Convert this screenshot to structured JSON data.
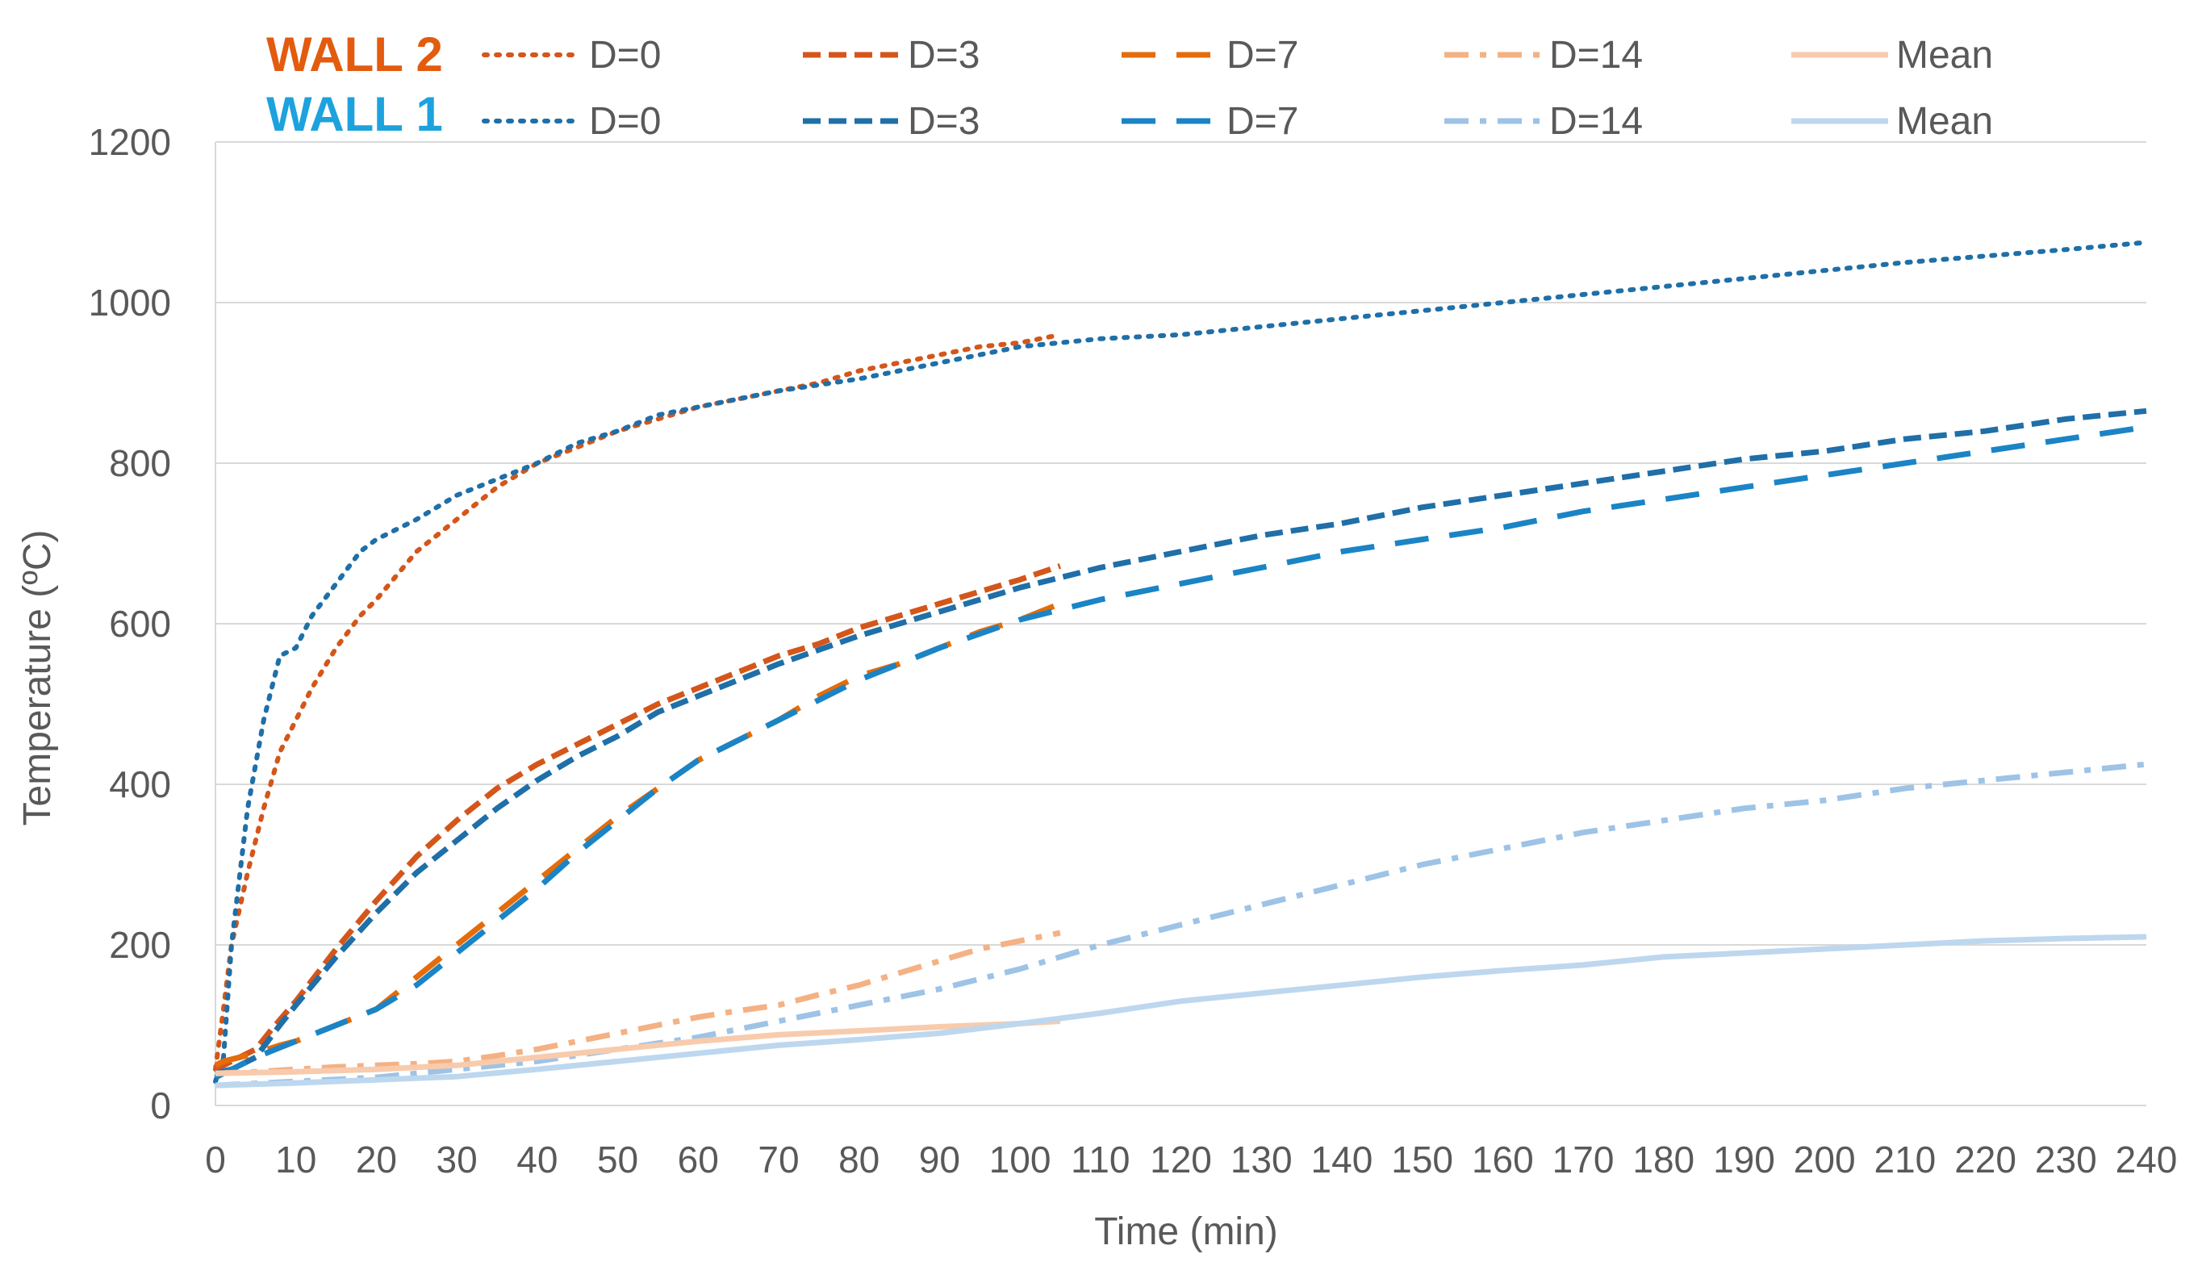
{
  "chart_data": {
    "type": "line",
    "title": "",
    "xlabel": "Time (min)",
    "ylabel": "Temperature (ºC)",
    "xlim": [
      0,
      240
    ],
    "ylim": [
      0,
      1200
    ],
    "xticks": [
      0,
      10,
      20,
      30,
      40,
      50,
      60,
      70,
      80,
      90,
      100,
      110,
      120,
      130,
      140,
      150,
      160,
      170,
      180,
      190,
      200,
      210,
      220,
      230,
      240
    ],
    "yticks": [
      0,
      200,
      400,
      600,
      800,
      1000,
      1200
    ],
    "grid": "horizontal",
    "legend_position": "top",
    "legend_groups": [
      {
        "label": "WALL 2",
        "color": "#e35b0e"
      },
      {
        "label": "WALL 1",
        "color": "#1da2de"
      }
    ],
    "series": [
      {
        "name": "D=0",
        "group": "WALL 2",
        "color": "#d4561a",
        "style": "dotted",
        "x": [
          0,
          1,
          2,
          4,
          6,
          8,
          10,
          12,
          15,
          18,
          20,
          25,
          30,
          35,
          40,
          45,
          50,
          55,
          60,
          65,
          70,
          75,
          80,
          85,
          90,
          95,
          100,
          104
        ],
        "y": [
          45,
          120,
          200,
          290,
          370,
          440,
          480,
          520,
          570,
          610,
          630,
          690,
          730,
          770,
          800,
          820,
          840,
          855,
          870,
          880,
          890,
          900,
          915,
          925,
          935,
          945,
          950,
          958
        ]
      },
      {
        "name": "D=0",
        "group": "WALL 1",
        "color": "#1f6fa8",
        "style": "dotted",
        "x": [
          0,
          1,
          2,
          4,
          6,
          8,
          10,
          12,
          15,
          18,
          20,
          25,
          30,
          35,
          40,
          45,
          50,
          55,
          60,
          70,
          80,
          90,
          100,
          110,
          120,
          130,
          140,
          150,
          160,
          170,
          180,
          190,
          200,
          210,
          220,
          230,
          240
        ],
        "y": [
          30,
          60,
          200,
          370,
          480,
          560,
          570,
          610,
          650,
          690,
          705,
          730,
          760,
          780,
          800,
          825,
          840,
          860,
          870,
          890,
          905,
          925,
          945,
          955,
          960,
          970,
          980,
          990,
          1000,
          1010,
          1020,
          1030,
          1040,
          1050,
          1058,
          1066,
          1075
        ]
      },
      {
        "name": "D=3",
        "group": "WALL 2",
        "color": "#d4561a",
        "style": "dashed-short",
        "x": [
          0,
          1,
          3,
          5,
          7,
          10,
          15,
          20,
          25,
          30,
          35,
          40,
          45,
          50,
          55,
          60,
          65,
          70,
          75,
          80,
          85,
          90,
          95,
          100,
          105
        ],
        "y": [
          45,
          50,
          60,
          70,
          95,
          130,
          195,
          255,
          310,
          355,
          395,
          425,
          450,
          475,
          500,
          520,
          540,
          560,
          575,
          595,
          610,
          625,
          640,
          655,
          672
        ]
      },
      {
        "name": "D=3",
        "group": "WALL 1",
        "color": "#1f6fa8",
        "style": "dashed-short",
        "x": [
          0,
          2,
          5,
          8,
          10,
          15,
          20,
          25,
          30,
          35,
          40,
          45,
          50,
          55,
          60,
          70,
          80,
          90,
          100,
          110,
          120,
          130,
          140,
          150,
          160,
          170,
          180,
          190,
          200,
          210,
          220,
          230,
          240
        ],
        "y": [
          40,
          45,
          60,
          100,
          125,
          185,
          240,
          290,
          330,
          370,
          405,
          435,
          460,
          490,
          510,
          550,
          585,
          615,
          645,
          670,
          690,
          710,
          725,
          745,
          760,
          775,
          790,
          805,
          815,
          830,
          840,
          855,
          865
        ]
      },
      {
        "name": "D=7",
        "group": "WALL 2",
        "color": "#e46c0a",
        "style": "dashed-long",
        "x": [
          0,
          1,
          3,
          5,
          8,
          10,
          15,
          20,
          25,
          30,
          35,
          40,
          45,
          50,
          55,
          60,
          65,
          70,
          75,
          80,
          85,
          90,
          95,
          100,
          105
        ],
        "y": [
          50,
          55,
          60,
          65,
          75,
          80,
          100,
          120,
          160,
          200,
          240,
          280,
          320,
          360,
          395,
          430,
          455,
          480,
          510,
          535,
          550,
          570,
          590,
          605,
          625
        ]
      },
      {
        "name": "D=7",
        "group": "WALL 1",
        "color": "#1a84c6",
        "style": "dashed-long",
        "x": [
          0,
          5,
          10,
          15,
          20,
          25,
          30,
          35,
          40,
          45,
          50,
          55,
          60,
          70,
          80,
          90,
          100,
          110,
          120,
          130,
          140,
          150,
          160,
          170,
          180,
          190,
          200,
          210,
          220,
          230,
          240
        ],
        "y": [
          35,
          60,
          80,
          100,
          120,
          150,
          190,
          230,
          270,
          315,
          355,
          395,
          430,
          480,
          530,
          570,
          605,
          630,
          650,
          670,
          690,
          705,
          720,
          740,
          755,
          770,
          785,
          800,
          815,
          830,
          845
        ]
      },
      {
        "name": "D=14",
        "group": "WALL 2",
        "color": "#f4b183",
        "style": "dash-dot",
        "x": [
          0,
          5,
          10,
          15,
          20,
          25,
          30,
          35,
          40,
          45,
          50,
          55,
          60,
          65,
          70,
          75,
          80,
          85,
          90,
          95,
          100,
          105
        ],
        "y": [
          40,
          42,
          45,
          48,
          50,
          52,
          55,
          62,
          70,
          80,
          90,
          100,
          110,
          118,
          125,
          138,
          150,
          165,
          180,
          195,
          205,
          215
        ]
      },
      {
        "name": "D=14",
        "group": "WALL 1",
        "color": "#9dc3e6",
        "style": "dash-dot",
        "x": [
          0,
          10,
          20,
          30,
          40,
          50,
          60,
          70,
          80,
          90,
          100,
          110,
          120,
          130,
          140,
          150,
          160,
          170,
          180,
          190,
          200,
          210,
          220,
          230,
          240
        ],
        "y": [
          25,
          30,
          35,
          45,
          55,
          70,
          85,
          105,
          125,
          145,
          170,
          200,
          225,
          250,
          275,
          300,
          320,
          340,
          355,
          370,
          380,
          395,
          405,
          415,
          425
        ]
      },
      {
        "name": "Mean",
        "group": "WALL 2",
        "color": "#f8cbad",
        "style": "solid",
        "x": [
          0,
          10,
          20,
          30,
          40,
          50,
          60,
          70,
          80,
          90,
          100,
          105
        ],
        "y": [
          40,
          42,
          45,
          50,
          60,
          70,
          80,
          88,
          93,
          98,
          102,
          105
        ]
      },
      {
        "name": "Mean",
        "group": "WALL 1",
        "color": "#bdd7ee",
        "style": "solid",
        "x": [
          0,
          10,
          20,
          30,
          40,
          50,
          60,
          70,
          80,
          90,
          100,
          110,
          120,
          130,
          140,
          150,
          160,
          170,
          180,
          190,
          200,
          210,
          220,
          230,
          240
        ],
        "y": [
          25,
          28,
          32,
          36,
          45,
          55,
          65,
          75,
          82,
          90,
          102,
          115,
          130,
          140,
          150,
          160,
          168,
          175,
          185,
          190,
          195,
          200,
          205,
          208,
          210
        ]
      }
    ]
  }
}
